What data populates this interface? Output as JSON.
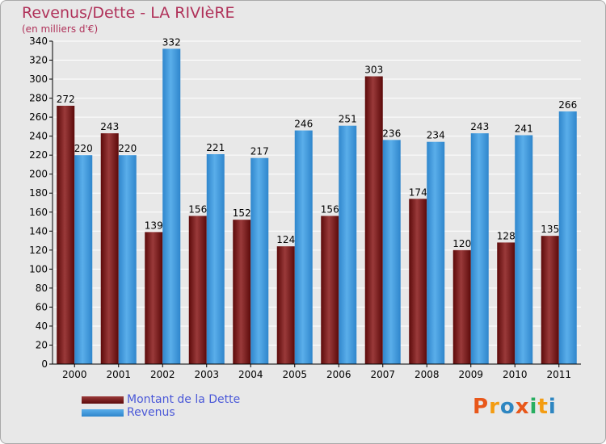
{
  "title": "Revenus/Dette - LA RIVIèRE",
  "subtitle": "(en milliers d'€)",
  "logo": {
    "text": "Proxiti",
    "letters": [
      "P",
      "r",
      "o",
      "x",
      "i",
      "t",
      "i"
    ],
    "colors": [
      "#e8571a",
      "#f39c12",
      "#2e86c1",
      "#e8571a",
      "#27ae60",
      "#f39c12",
      "#2e86c1"
    ]
  },
  "colors": {
    "dette": "#7a1a1a",
    "revenus": "#3d97da",
    "axis": "#000000",
    "grid": "#ffffff",
    "background": "#e8e8e8",
    "title": "#b0325a",
    "legend_text": "#4a58d8"
  },
  "chart_data": {
    "type": "bar",
    "title": "Revenus/Dette - LA RIVIèRE",
    "ylabel": "(en milliers d'€)",
    "categories": [
      "2000",
      "2001",
      "2002",
      "2003",
      "2004",
      "2005",
      "2006",
      "2007",
      "2008",
      "2009",
      "2010",
      "2011"
    ],
    "series": [
      {
        "name": "Montant de la Dette",
        "values": [
          272,
          243,
          139,
          156,
          152,
          124,
          156,
          303,
          174,
          120,
          128,
          135
        ]
      },
      {
        "name": "Revenus",
        "values": [
          220,
          220,
          332,
          221,
          217,
          246,
          251,
          236,
          234,
          243,
          241,
          266
        ]
      }
    ],
    "ylim": [
      0,
      340
    ],
    "yticks": [
      0,
      20,
      40,
      60,
      80,
      100,
      120,
      140,
      160,
      180,
      200,
      220,
      240,
      260,
      280,
      300,
      320,
      340
    ],
    "grid": true,
    "legend": "bottom-left"
  }
}
